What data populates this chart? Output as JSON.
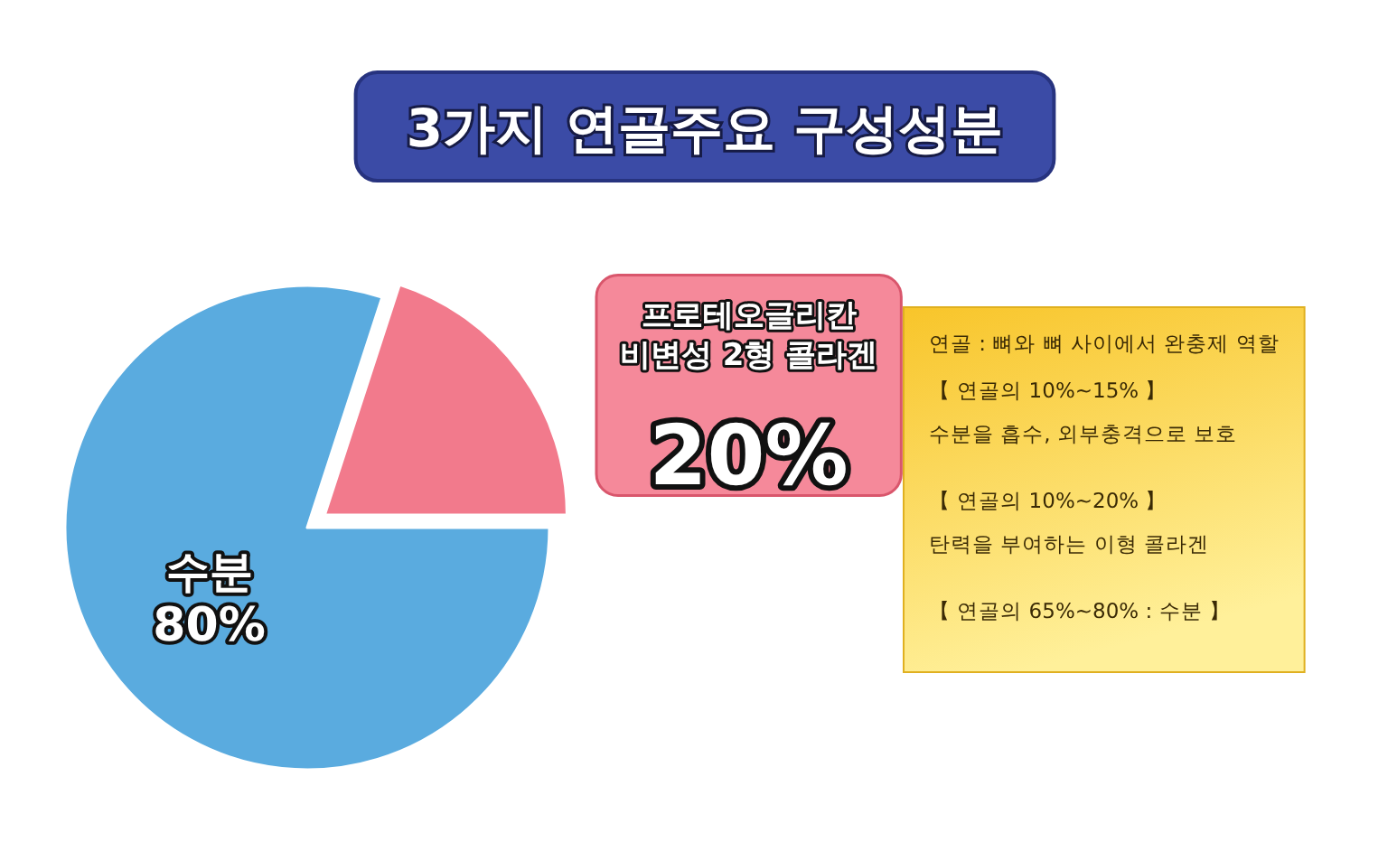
{
  "chart_data": {
    "type": "pie",
    "title": "3가지 연골주요 구성성분",
    "categories": [
      "수분",
      "프로테오글리칸 비변성 2형 콜라겐"
    ],
    "values": [
      80,
      20
    ],
    "colors": [
      "#5aabdf",
      "#f27a8c"
    ],
    "value_labels": [
      "80%",
      "20%"
    ],
    "annotations": [
      "연골 : 뼈와 뼈 사이에서 완충제 역할",
      "【 연골의 10%~15% 】",
      "수분을 흡수, 외부충격으로 보호",
      "【 연골의 10%~20% 】",
      "탄력을 부여하는 이형 콜라겐",
      "【 연골의 65%~80% : 수분 】"
    ]
  }
}
